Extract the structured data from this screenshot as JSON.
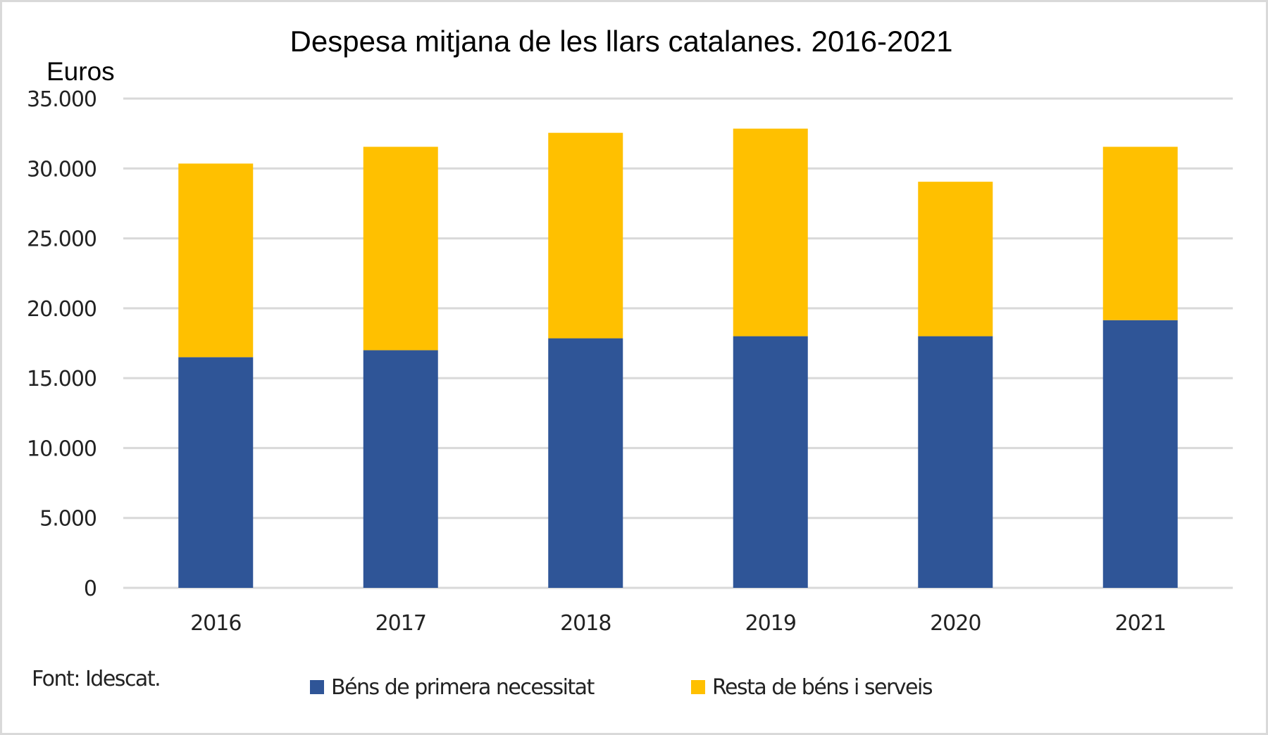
{
  "chart_data": {
    "type": "bar",
    "stacked": true,
    "title": "Despesa mitjana de les llars catalanes. 2016-2021",
    "xlabel": "",
    "ylabel": "Euros",
    "ylim": [
      0,
      35000
    ],
    "yticks": [
      0,
      5000,
      10000,
      15000,
      20000,
      25000,
      30000,
      35000
    ],
    "ytick_labels": [
      "0",
      "5.000",
      "10.000",
      "15.000",
      "20.000",
      "25.000",
      "30.000",
      "35.000"
    ],
    "grid": true,
    "categories": [
      "2016",
      "2017",
      "2018",
      "2019",
      "2020",
      "2021"
    ],
    "series": [
      {
        "name": "Béns de primera necessitat",
        "color": "#2f5597",
        "values": [
          16500,
          17000,
          17850,
          18000,
          18000,
          19150
        ]
      },
      {
        "name": "Resta de béns i serveis",
        "color": "#ffc000",
        "values": [
          13850,
          14550,
          14700,
          14850,
          11050,
          12400
        ]
      }
    ],
    "legend_position": "bottom",
    "source": "Font: Idescat."
  }
}
